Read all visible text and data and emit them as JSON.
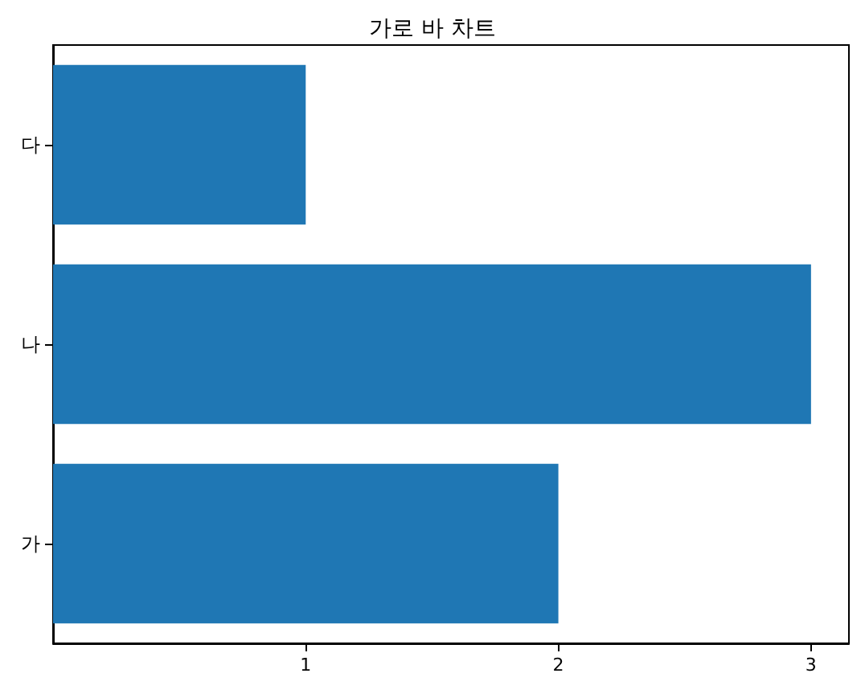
{
  "chart_data": {
    "type": "bar",
    "orientation": "horizontal",
    "title": "가로 바 차트",
    "categories": [
      "다",
      "나",
      "가"
    ],
    "values": [
      1,
      3,
      2
    ],
    "color": "#1f77b4",
    "xlim": [
      0,
      3.15
    ],
    "xticks": [
      1,
      2,
      3
    ]
  }
}
